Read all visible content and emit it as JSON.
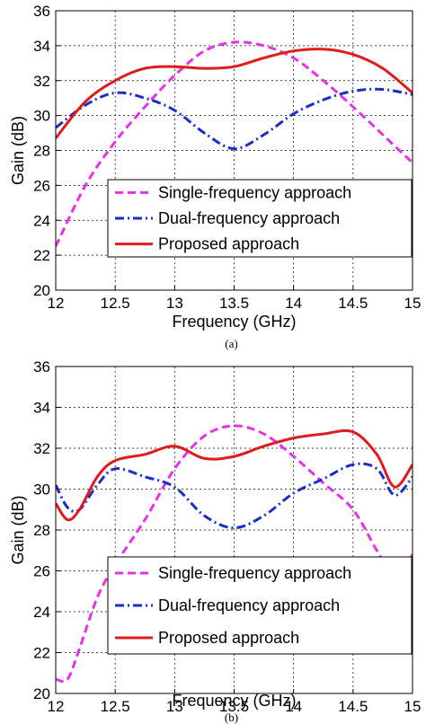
{
  "chart_data": [
    {
      "type": "line",
      "caption": "(a)",
      "xlabel": "Frequency (GHz)",
      "ylabel": "Gain (dB)",
      "xlim": [
        12,
        15
      ],
      "ylim": [
        20,
        36
      ],
      "xticks": [
        "12",
        "12.5",
        "13",
        "13.5",
        "14",
        "14.5",
        "15"
      ],
      "yticks": [
        "20",
        "22",
        "24",
        "26",
        "28",
        "30",
        "32",
        "34",
        "36"
      ],
      "grid": true,
      "legend_position": "bottom-right",
      "series": [
        {
          "name": "Single-frequency approach",
          "color": "#e830e8",
          "style": "dashed",
          "x": [
            12,
            12.25,
            12.5,
            12.75,
            13,
            13.25,
            13.5,
            13.75,
            14,
            14.25,
            14.5,
            14.75,
            15
          ],
          "y": [
            22.5,
            26.0,
            28.5,
            30.5,
            32.3,
            33.7,
            34.2,
            34.0,
            33.3,
            32.0,
            30.5,
            28.9,
            27.3
          ]
        },
        {
          "name": "Dual-frequency approach",
          "color": "#1a2dc8",
          "style": "dashdot",
          "x": [
            12,
            12.25,
            12.5,
            12.75,
            13,
            13.25,
            13.5,
            13.75,
            14,
            14.25,
            14.5,
            14.75,
            15
          ],
          "y": [
            29.3,
            30.6,
            31.3,
            31.0,
            30.3,
            29.0,
            28.1,
            28.9,
            30.1,
            30.9,
            31.4,
            31.5,
            31.2
          ]
        },
        {
          "name": "Proposed approach",
          "color": "#e01b1b",
          "style": "solid",
          "x": [
            12,
            12.25,
            12.5,
            12.75,
            13,
            13.25,
            13.5,
            13.75,
            14,
            14.25,
            14.5,
            14.75,
            15
          ],
          "y": [
            28.7,
            30.8,
            32.0,
            32.7,
            32.8,
            32.7,
            32.8,
            33.3,
            33.7,
            33.8,
            33.5,
            32.7,
            31.3
          ]
        }
      ]
    },
    {
      "type": "line",
      "caption": "(b)",
      "xlabel": "Frequency (GHz)",
      "ylabel": "Gain (dB)",
      "xlim": [
        12,
        15
      ],
      "ylim": [
        20,
        36
      ],
      "xticks": [
        "12",
        "12.5",
        "13",
        "13.5",
        "14",
        "14.5",
        "15"
      ],
      "yticks": [
        "20",
        "22",
        "24",
        "26",
        "28",
        "30",
        "32",
        "34",
        "36"
      ],
      "grid": true,
      "legend_position": "bottom-right",
      "series": [
        {
          "name": "Single-frequency approach",
          "color": "#e830e8",
          "style": "dashed",
          "x": [
            12,
            12.1,
            12.2,
            12.35,
            12.5,
            12.75,
            13,
            13.25,
            13.5,
            13.75,
            14,
            14.25,
            14.5,
            14.7,
            14.85,
            15
          ],
          "y": [
            20.7,
            20.7,
            22.2,
            24.7,
            26.3,
            28.5,
            31.0,
            32.6,
            33.1,
            32.7,
            31.6,
            30.3,
            29.0,
            27.0,
            25.7,
            26.8
          ]
        },
        {
          "name": "Dual-frequency approach",
          "color": "#1a2dc8",
          "style": "dashdot",
          "x": [
            12,
            12.1,
            12.2,
            12.35,
            12.5,
            12.75,
            13,
            13.25,
            13.5,
            13.75,
            14,
            14.25,
            14.5,
            14.7,
            14.85,
            15
          ],
          "y": [
            30.2,
            29.1,
            29.0,
            30.2,
            31.0,
            30.6,
            30.1,
            28.7,
            28.1,
            28.7,
            29.8,
            30.5,
            31.2,
            31.0,
            29.7,
            30.6
          ]
        },
        {
          "name": "Proposed approach",
          "color": "#e01b1b",
          "style": "solid",
          "x": [
            12,
            12.1,
            12.2,
            12.35,
            12.5,
            12.75,
            13,
            13.25,
            13.5,
            13.75,
            14,
            14.25,
            14.5,
            14.7,
            14.85,
            15
          ],
          "y": [
            29.3,
            28.5,
            29.0,
            30.6,
            31.4,
            31.7,
            32.1,
            31.5,
            31.6,
            32.1,
            32.5,
            32.7,
            32.8,
            31.7,
            30.1,
            31.2
          ]
        }
      ]
    }
  ]
}
